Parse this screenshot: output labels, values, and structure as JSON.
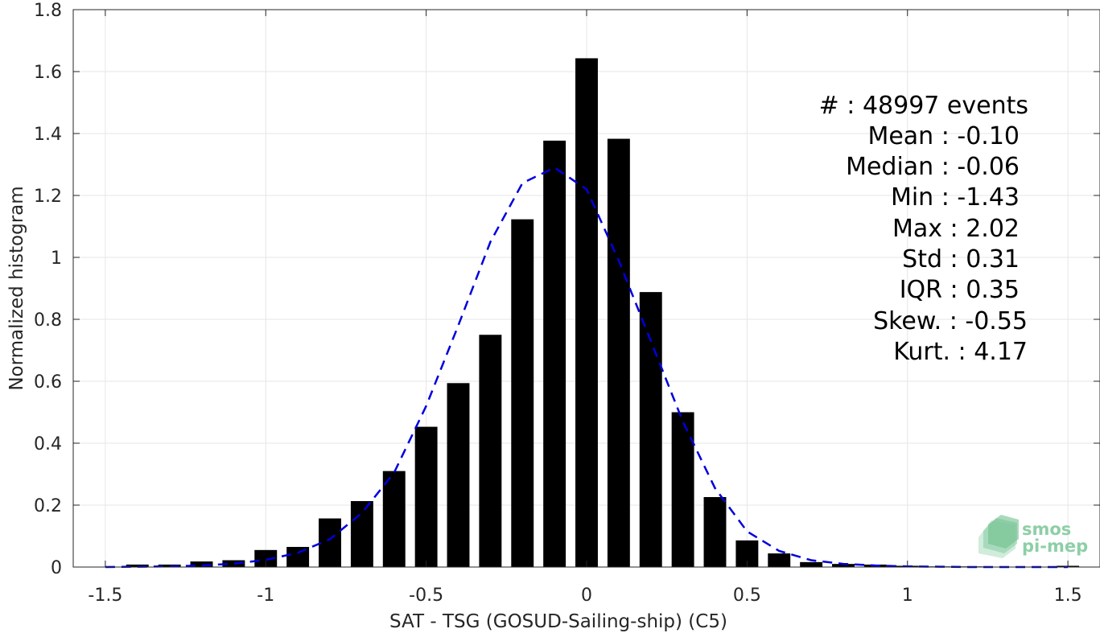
{
  "chart_data": {
    "type": "bar",
    "title": "",
    "xlabel": "SAT - TSG (GOSUD-Sailing-ship) (C5)",
    "ylabel": "Normalized histogram",
    "xlim": [
      -1.6,
      1.6
    ],
    "ylim": [
      0,
      1.8
    ],
    "grid": true,
    "xticks": [
      -1.5,
      -1,
      -0.5,
      0,
      0.5,
      1,
      1.5
    ],
    "xtick_labels": [
      "-1.5",
      "-1",
      "-0.5",
      "0",
      "0.5",
      "1",
      "1.5"
    ],
    "yticks": [
      0,
      0.2,
      0.4,
      0.6,
      0.8,
      1,
      1.2,
      1.4,
      1.6,
      1.8
    ],
    "ytick_labels": [
      "0",
      "0.2",
      "0.4",
      "0.6",
      "0.8",
      "1",
      "1.2",
      "1.4",
      "1.6",
      "1.8"
    ],
    "bin_width": 0.1,
    "x": [
      -1.4,
      -1.3,
      -1.2,
      -1.1,
      -1.0,
      -0.9,
      -0.8,
      -0.7,
      -0.6,
      -0.5,
      -0.4,
      -0.3,
      -0.2,
      -0.1,
      0.0,
      0.1,
      0.2,
      0.3,
      0.4,
      0.5,
      0.6,
      0.7,
      0.8,
      0.9,
      1.0,
      1.1,
      1.2,
      1.3,
      1.4,
      1.5
    ],
    "values": [
      0.008,
      0.008,
      0.018,
      0.022,
      0.055,
      0.065,
      0.157,
      0.213,
      0.31,
      0.453,
      0.594,
      0.75,
      1.123,
      1.377,
      1.643,
      1.383,
      0.888,
      0.5,
      0.226,
      0.086,
      0.044,
      0.016,
      0.01,
      0.008,
      0.004,
      0.002,
      0.002,
      0.001,
      0.001,
      0.004
    ],
    "fit_curve": {
      "style": "dashed",
      "color": "#0000dd",
      "x": [
        -1.5,
        -1.4,
        -1.3,
        -1.2,
        -1.1,
        -1.0,
        -0.9,
        -0.8,
        -0.7,
        -0.6,
        -0.5,
        -0.4,
        -0.3,
        -0.2,
        -0.1,
        0.0,
        0.1,
        0.2,
        0.3,
        0.4,
        0.5,
        0.6,
        0.7,
        0.8,
        0.9,
        1.0,
        1.1,
        1.2,
        1.3,
        1.4,
        1.5
      ],
      "y": [
        0.0,
        0.001,
        0.002,
        0.005,
        0.011,
        0.023,
        0.046,
        0.09,
        0.175,
        0.305,
        0.52,
        0.78,
        1.05,
        1.24,
        1.29,
        1.22,
        0.99,
        0.73,
        0.47,
        0.255,
        0.115,
        0.052,
        0.022,
        0.01,
        0.005,
        0.002,
        0.001,
        0.0,
        0.0,
        0.0,
        0.0
      ]
    },
    "bar_color": "#000000",
    "stats_lines": [
      "#  : 48997 events",
      "Mean : -0.10",
      "Median : -0.06",
      "Min : -1.43",
      "Max : 2.02",
      "Std : 0.31",
      "IQR : 0.35",
      "Skew. : -0.55",
      "Kurt. : 4.17"
    ],
    "logo": {
      "line1": "smos",
      "line2": "pi-mep"
    }
  }
}
